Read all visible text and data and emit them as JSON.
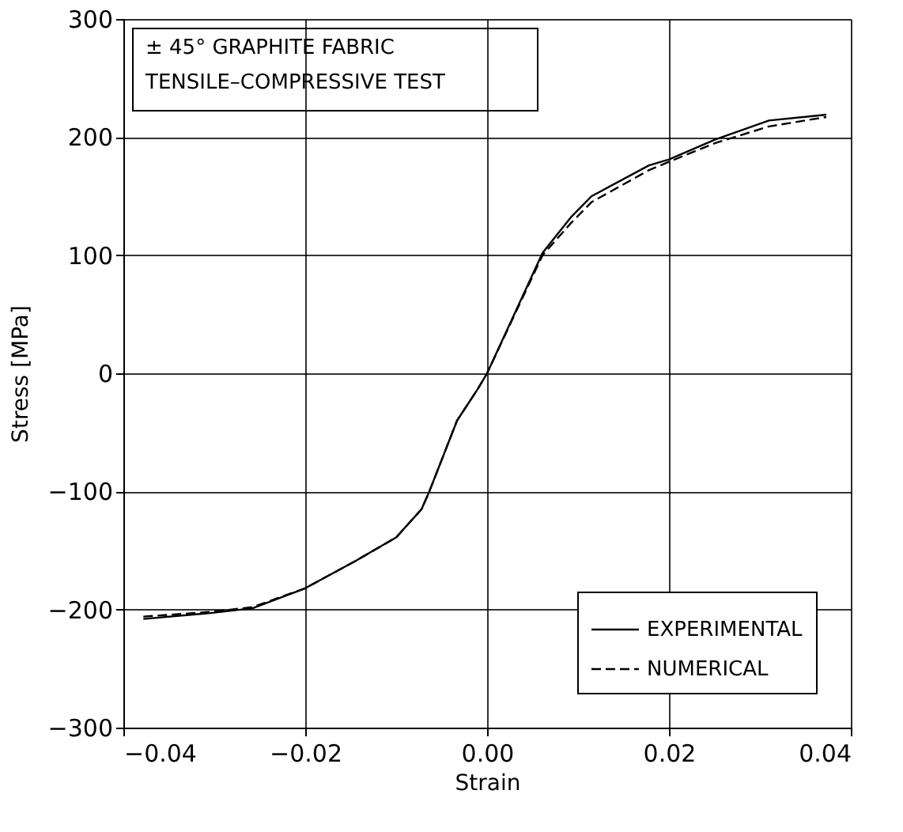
{
  "chart_data": {
    "type": "line",
    "xlabel": "Strain",
    "ylabel": "Stress [MPa]",
    "annotations": [
      "± 45° GRAPHITE FABRIC",
      "TENSILE–COMPRESSIVE TEST"
    ],
    "xlim": [
      -0.04,
      0.04
    ],
    "xticks": [
      {
        "value": -0.04,
        "label": "−0.04"
      },
      {
        "value": -0.02,
        "label": "−0.02"
      },
      {
        "value": 0,
        "label": "0.00"
      },
      {
        "value": 0.02,
        "label": "0.02"
      },
      {
        "value": 0.04,
        "label": "0.04"
      }
    ],
    "ylim": [
      -300,
      300
    ],
    "yticks": [
      {
        "value": -300,
        "label": "−300"
      },
      {
        "value": -200,
        "label": "−200"
      },
      {
        "value": -100,
        "label": "−100"
      },
      0,
      100,
      200,
      300
    ],
    "grid": true,
    "legend": "bottom right",
    "marker": "none",
    "series": [
      {
        "name": "EXPERIMENTAL",
        "color": "#000000",
        "line_style": "solid",
        "x": [
          -0.0378,
          -0.0304,
          -0.0258,
          -0.02,
          -0.0145,
          -0.01,
          -0.0072,
          -0.0064,
          -0.0033,
          -0.001,
          0,
          0.0061,
          0.0092,
          0.0115,
          0.0178,
          0.02,
          0.0251,
          0.031,
          0.0373
        ],
        "values": [
          -208,
          -203,
          -199,
          -182,
          -159,
          -139,
          -115,
          -101,
          -40,
          -13,
          0,
          102,
          132,
          150,
          176,
          181,
          198,
          214,
          219
        ]
      },
      {
        "name": "NUMERICAL",
        "color": "#000000",
        "line_style": "dashed",
        "x": [
          -0.0378,
          -0.0304,
          -0.0258,
          -0.02,
          -0.0145,
          -0.01,
          -0.0072,
          -0.0064,
          -0.0033,
          -0.001,
          0,
          0.0061,
          0.0092,
          0.0115,
          0.0178,
          0.02,
          0.0251,
          0.031,
          0.0373
        ],
        "values": [
          -206,
          -202,
          -198,
          -182,
          -159,
          -139,
          -115,
          -101,
          -40,
          -13,
          0,
          100,
          127,
          145,
          172,
          179,
          195,
          209,
          217
        ]
      }
    ]
  }
}
